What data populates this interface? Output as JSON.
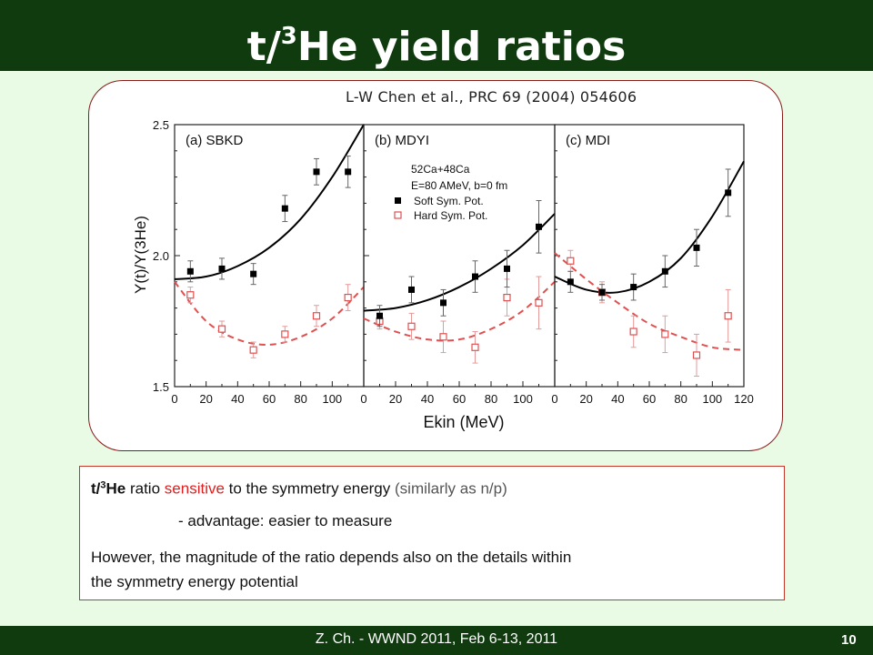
{
  "slide": {
    "title_main": "t/",
    "title_sup": "3",
    "title_rest": "He yield ratios",
    "citation": "L-W Chen et al., PRC 69 (2004) 054606",
    "footer": "Z. Ch. - WWND 2011, Feb 6-13, 2011",
    "page_number": "10",
    "text": {
      "line1_bold_a": "t/",
      "line1_bold_sup": "3",
      "line1_bold_b": "He",
      "line1_plain": " ratio ",
      "line1_red": "sensitive",
      "line1_rest": " to the symmetry energy ",
      "line1_grey": "(similarly as n/p)",
      "line2": "- advantage: easier to measure",
      "line3": "However, the magnitude of the ratio depends also on the details within",
      "line4": "the symmetry energy potential"
    },
    "colors": {
      "bar": "#0f3b0f",
      "background": "#e9fbe4",
      "soft": "#000000",
      "hard": "#e05050",
      "frame": "#8b1a1a"
    }
  },
  "chart_data": {
    "type": "scatter",
    "ylabel": "Y(t)/Y(3He)",
    "xlabel": "Ekin (MeV)",
    "ylim": [
      1.5,
      2.5
    ],
    "yticks": [
      "1.5",
      "2.0",
      "2.5"
    ],
    "xticks": [
      "0",
      "20",
      "40",
      "60",
      "80",
      "100"
    ],
    "xticks_last": [
      "0",
      "20",
      "40",
      "60",
      "80",
      "100",
      "120"
    ],
    "legend": {
      "reaction": "52Ca+48Ca",
      "energy": "E=80 AMeV, b=0 fm",
      "soft": "Soft Sym. Pot.",
      "hard": "Hard Sym. Pot."
    },
    "panels": [
      {
        "label": "(a) SBKD",
        "xlim": [
          0,
          120
        ],
        "soft": {
          "x": [
            10,
            30,
            50,
            70,
            90,
            110
          ],
          "y": [
            1.94,
            1.95,
            1.93,
            2.18,
            2.32,
            2.32
          ],
          "err": [
            0.04,
            0.04,
            0.04,
            0.05,
            0.05,
            0.06
          ]
        },
        "hard": {
          "x": [
            10,
            30,
            50,
            70,
            90,
            110
          ],
          "y": [
            1.85,
            1.72,
            1.64,
            1.7,
            1.77,
            1.84
          ],
          "err": [
            0.03,
            0.03,
            0.03,
            0.03,
            0.04,
            0.05
          ]
        },
        "soft_curve": {
          "x": [
            0,
            20,
            40,
            60,
            80,
            100,
            120
          ],
          "y": [
            1.91,
            1.92,
            1.96,
            2.03,
            2.14,
            2.3,
            2.5
          ]
        },
        "hard_curve": {
          "x": [
            0,
            20,
            40,
            60,
            80,
            100,
            120
          ],
          "y": [
            1.9,
            1.75,
            1.68,
            1.66,
            1.69,
            1.76,
            1.88
          ]
        }
      },
      {
        "label": "(b) MDYI",
        "xlim": [
          0,
          120
        ],
        "soft": {
          "x": [
            10,
            30,
            50,
            70,
            90,
            110
          ],
          "y": [
            1.77,
            1.87,
            1.82,
            1.92,
            1.95,
            2.11
          ],
          "err": [
            0.04,
            0.05,
            0.05,
            0.06,
            0.07,
            0.1
          ]
        },
        "hard": {
          "x": [
            10,
            30,
            50,
            70,
            90,
            110
          ],
          "y": [
            1.75,
            1.73,
            1.69,
            1.65,
            1.84,
            1.82
          ],
          "err": [
            0.03,
            0.05,
            0.06,
            0.06,
            0.07,
            0.1
          ]
        },
        "soft_curve": {
          "x": [
            0,
            20,
            40,
            60,
            80,
            100,
            120
          ],
          "y": [
            1.79,
            1.8,
            1.83,
            1.88,
            1.95,
            2.04,
            2.16
          ]
        },
        "hard_curve": {
          "x": [
            0,
            20,
            40,
            60,
            80,
            100,
            120
          ],
          "y": [
            1.76,
            1.71,
            1.68,
            1.68,
            1.72,
            1.79,
            1.9
          ]
        }
      },
      {
        "label": "(c) MDI",
        "xlim": [
          0,
          120
        ],
        "soft": {
          "x": [
            10,
            30,
            50,
            70,
            90,
            110
          ],
          "y": [
            1.9,
            1.86,
            1.88,
            1.94,
            2.03,
            2.24
          ],
          "err": [
            0.04,
            0.03,
            0.05,
            0.06,
            0.07,
            0.09
          ]
        },
        "hard": {
          "x": [
            10,
            30,
            50,
            70,
            90,
            110
          ],
          "y": [
            1.98,
            1.86,
            1.71,
            1.7,
            1.62,
            1.77
          ],
          "err": [
            0.04,
            0.04,
            0.06,
            0.07,
            0.08,
            0.1
          ]
        },
        "soft_curve": {
          "x": [
            0,
            20,
            40,
            60,
            80,
            100,
            120
          ],
          "y": [
            1.92,
            1.87,
            1.86,
            1.9,
            1.99,
            2.15,
            2.36
          ]
        },
        "hard_curve": {
          "x": [
            0,
            20,
            40,
            60,
            80,
            100,
            120
          ],
          "y": [
            2.01,
            1.91,
            1.82,
            1.74,
            1.69,
            1.65,
            1.64
          ]
        }
      }
    ]
  }
}
